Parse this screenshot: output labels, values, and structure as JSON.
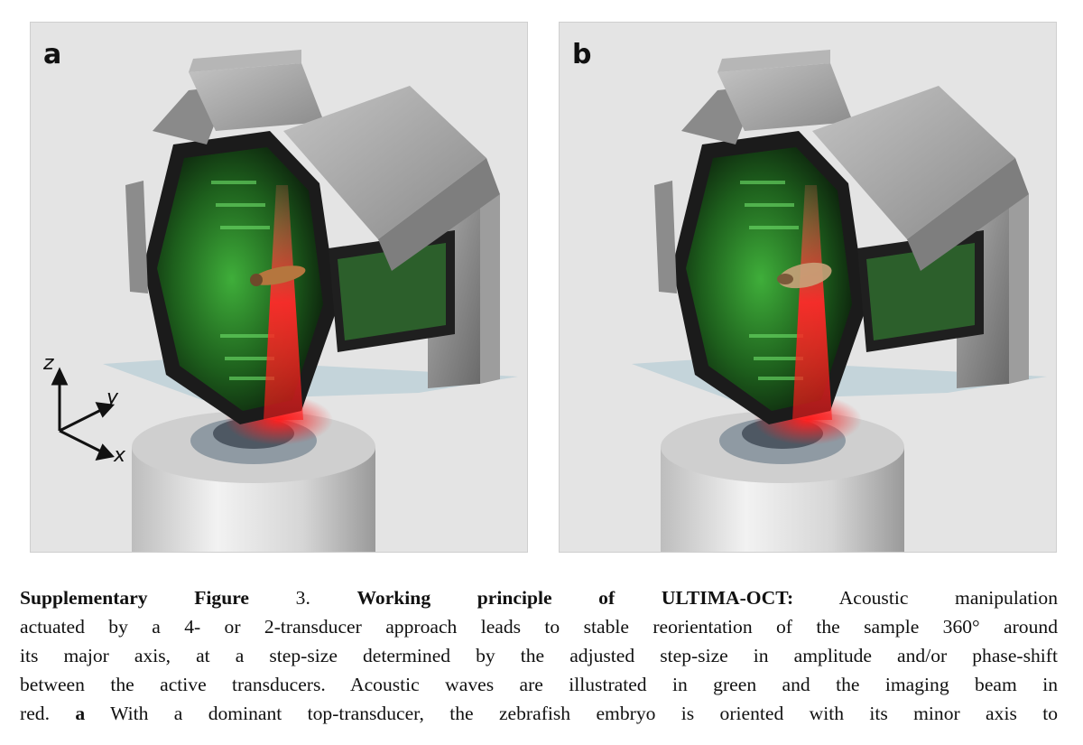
{
  "figure": {
    "panels": [
      {
        "label": "a"
      },
      {
        "label": "b"
      }
    ],
    "axes": {
      "z": "z",
      "y": "y",
      "x": "x"
    }
  },
  "caption": {
    "prefix": "Supplementary Figure",
    "number": "3.",
    "title": "Working principle of ULTIMA-OCT:",
    "line1_rest": "Acoustic manipulation",
    "line2": "actuated by a 4- or 2-transducer approach leads to stable reorientation of the sample 360° around",
    "line3": "its major axis, at a step-size determined by the adjusted step-size in amplitude and/or phase-shift",
    "line4": "between the active transducers. Acoustic waves are illustrated in green and the imaging beam in",
    "line5_panel": "a",
    "line5_prefix": "red.",
    "line5_rest": "With a dominant top-transducer, the zebrafish embryo is oriented with its minor axis to"
  }
}
